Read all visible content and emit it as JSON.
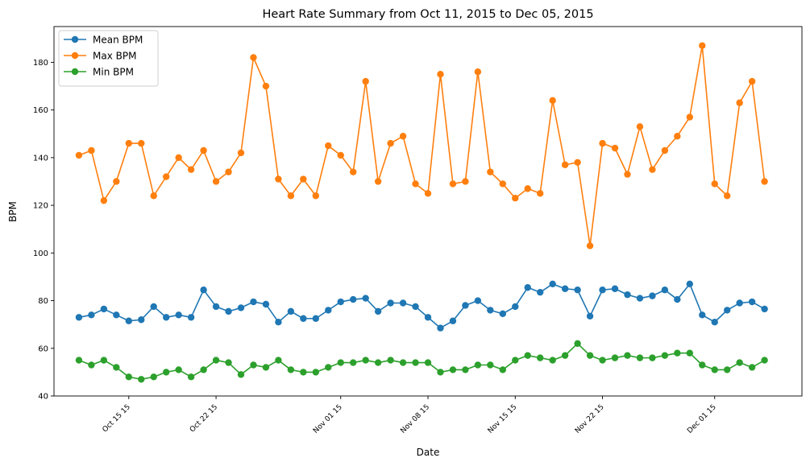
{
  "chart_data": {
    "type": "line",
    "title": "Heart Rate Summary from Oct 11, 2015 to Dec 05, 2015",
    "xlabel": "Date",
    "ylabel": "BPM",
    "xlim": [
      "2015-10-09",
      "2015-12-08"
    ],
    "ylim": [
      40,
      195
    ],
    "yticks": [
      40,
      60,
      80,
      100,
      120,
      140,
      160,
      180
    ],
    "xticks": [
      {
        "date": "2015-10-15",
        "label": "Oct 15 15"
      },
      {
        "date": "2015-10-22",
        "label": "Oct 22 15"
      },
      {
        "date": "2015-11-01",
        "label": "Nov 01 15"
      },
      {
        "date": "2015-11-08",
        "label": "Nov 08 15"
      },
      {
        "date": "2015-11-15",
        "label": "Nov 15 15"
      },
      {
        "date": "2015-11-22",
        "label": "Nov 22 15"
      },
      {
        "date": "2015-12-01",
        "label": "Dec 01 15"
      }
    ],
    "grid": false,
    "legend": "top-left",
    "start_date": "2015-10-11",
    "series": [
      {
        "name": "Mean BPM",
        "color": "#1f77b4",
        "values": [
          73,
          74,
          76.5,
          74,
          71.5,
          72,
          77.5,
          73,
          74,
          73,
          84.5,
          77.5,
          75.5,
          77,
          79.5,
          78.5,
          71,
          75.5,
          72.5,
          72.5,
          76,
          79.5,
          80.5,
          81,
          75.5,
          79,
          79,
          77.5,
          73,
          68.5,
          71.5,
          78,
          80,
          76,
          74.5,
          77.5,
          85.5,
          83.5,
          87,
          85,
          84.5,
          73.5,
          84.5,
          85,
          82.5,
          81,
          82,
          84.5,
          80.5,
          87,
          74,
          71,
          76,
          79,
          79.5,
          76.5
        ]
      },
      {
        "name": "Max BPM",
        "color": "#ff7f0e",
        "values": [
          141,
          143,
          122,
          130,
          146,
          146,
          124,
          132,
          140,
          135,
          143,
          130,
          134,
          142,
          182,
          170,
          131,
          124,
          131,
          124,
          145,
          141,
          134,
          172,
          130,
          146,
          149,
          129,
          125,
          175,
          129,
          130,
          176,
          134,
          129,
          123,
          127,
          125,
          164,
          137,
          138,
          103,
          146,
          144,
          133,
          153,
          135,
          143,
          149,
          157,
          187,
          129,
          124,
          163,
          172,
          130
        ]
      },
      {
        "name": "Min BPM",
        "color": "#2ca02c",
        "values": [
          55,
          53,
          55,
          52,
          48,
          47,
          48,
          50,
          51,
          48,
          51,
          55,
          54,
          49,
          53,
          52,
          55,
          51,
          50,
          50,
          52,
          54,
          54,
          55,
          54,
          55,
          54,
          54,
          54,
          50,
          51,
          51,
          53,
          53,
          51,
          55,
          57,
          56,
          55,
          57,
          62,
          57,
          55,
          56,
          57,
          56,
          56,
          57,
          58,
          58,
          53,
          51,
          51,
          54,
          52,
          55
        ]
      }
    ]
  }
}
